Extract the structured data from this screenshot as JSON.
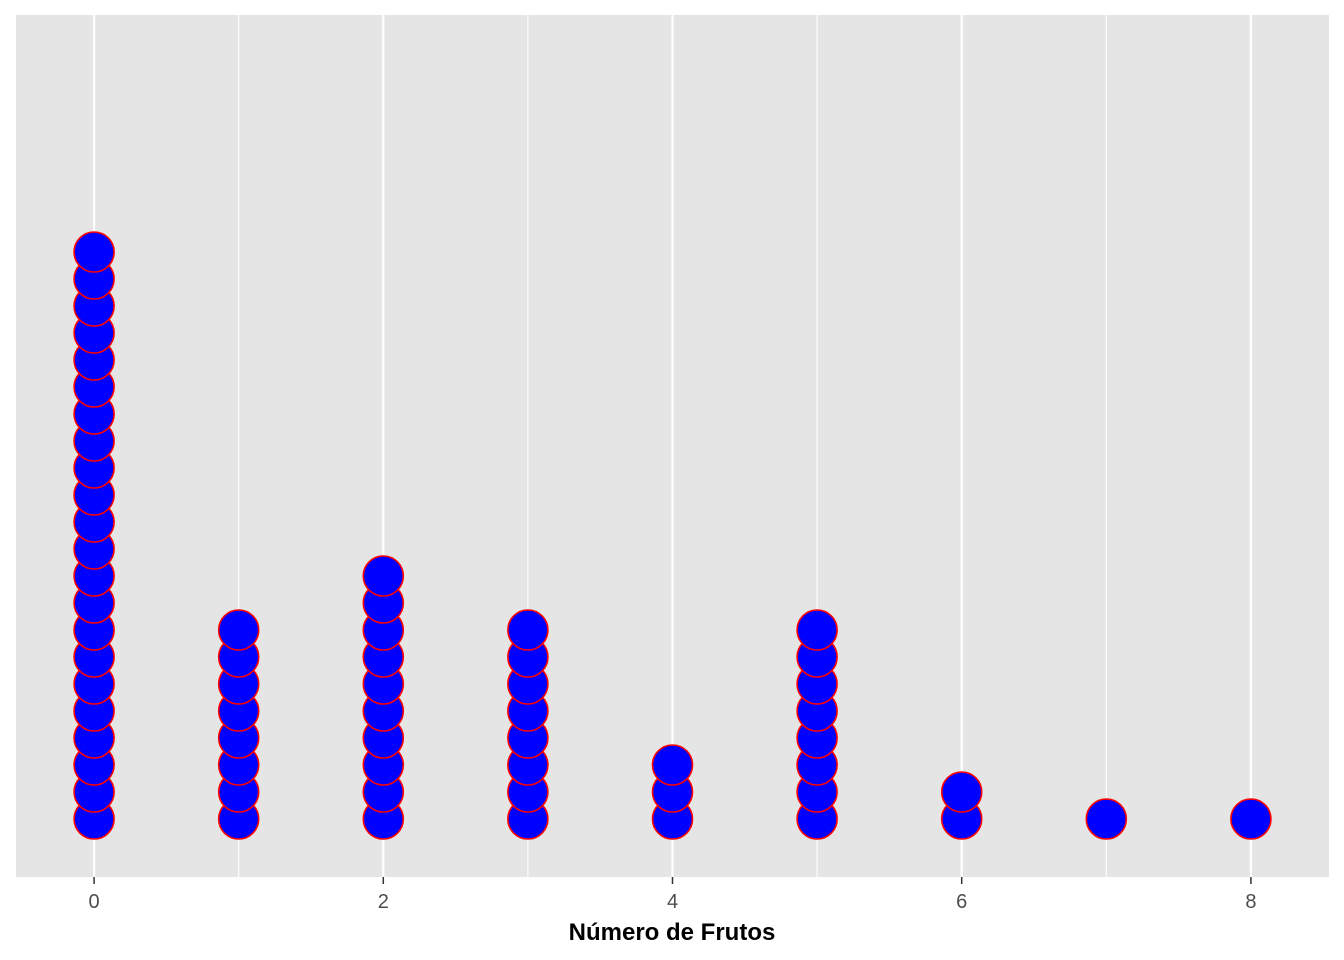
{
  "chart_data": {
    "type": "dotplot",
    "xlabel": "Número de Frutos",
    "ylabel": "",
    "title": "",
    "xlim": [
      -0.54,
      8.54
    ],
    "x_ticks": [
      0,
      2,
      4,
      6,
      8
    ],
    "grid": true,
    "grid_major_x": [
      0,
      2,
      4,
      6,
      8
    ],
    "grid_minor_x": [
      1,
      3,
      5,
      7
    ],
    "points": [
      {
        "x": 0,
        "count": 22
      },
      {
        "x": 1,
        "count": 8
      },
      {
        "x": 2,
        "count": 10
      },
      {
        "x": 3,
        "count": 8
      },
      {
        "x": 4,
        "count": 3
      },
      {
        "x": 5,
        "count": 8
      },
      {
        "x": 6,
        "count": 2
      },
      {
        "x": 7,
        "count": 1
      },
      {
        "x": 8,
        "count": 1
      }
    ],
    "colors": {
      "panel": "#e5e5e5",
      "grid": "#ffffff",
      "dot_fill": "#0000ff",
      "dot_stroke": "#ff0000"
    }
  }
}
